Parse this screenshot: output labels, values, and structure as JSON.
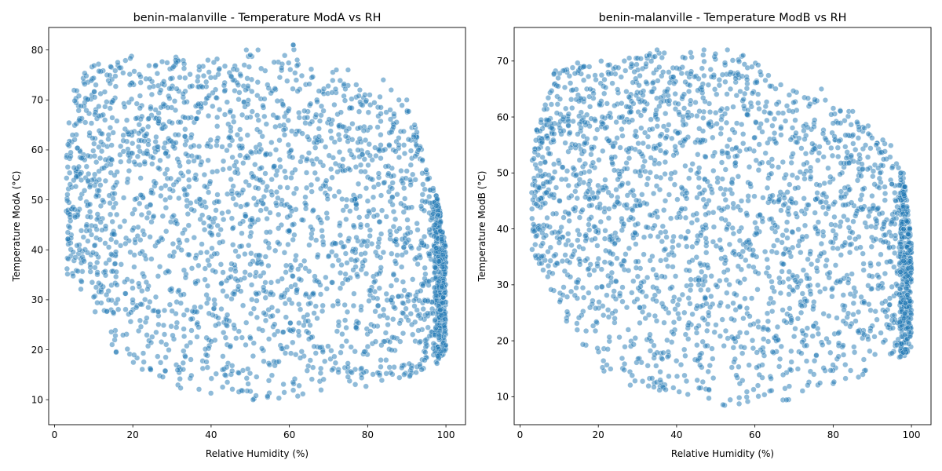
{
  "colors": {
    "point": "#1f77b4",
    "background": "#ffffff",
    "axis": "#000000"
  },
  "chart_data": [
    {
      "type": "scatter",
      "title": "benin-malanville - Temperature ModA vs RH",
      "xlabel": "Relative Humidity (%)",
      "ylabel": "Temperature ModA (°C)",
      "xlim": [
        -1.5,
        105
      ],
      "ylim": [
        5,
        84.5
      ],
      "xticks": [
        0,
        20,
        40,
        60,
        80,
        100
      ],
      "yticks": [
        10,
        20,
        30,
        40,
        50,
        60,
        70,
        80
      ],
      "grid": false,
      "legend": "none",
      "point_alpha": 0.5,
      "envelope": {
        "x": [
          3,
          5,
          8,
          12,
          16,
          20,
          25,
          30,
          35,
          40,
          45,
          50,
          55,
          60,
          65,
          70,
          75,
          80,
          85,
          90,
          95,
          98,
          100
        ],
        "y_min": [
          35,
          34,
          30,
          24,
          19,
          16,
          14,
          12.5,
          11,
          10.5,
          10,
          9.5,
          9.5,
          10,
          10.5,
          11,
          11.5,
          12,
          13,
          14,
          16,
          17,
          18
        ],
        "y_max": [
          62,
          72,
          76,
          78,
          78,
          79,
          78,
          79,
          78,
          78,
          79,
          79,
          78,
          81,
          77,
          76,
          74,
          72,
          70,
          70,
          58,
          50,
          40
        ]
      },
      "outliers": {
        "x": [
          49,
          50,
          52,
          61,
          61,
          62,
          72,
          75,
          78,
          84,
          86,
          88,
          90,
          92,
          93,
          94,
          95,
          98
        ],
        "y": [
          80,
          79,
          80,
          81,
          81,
          78,
          76,
          76,
          72,
          74,
          72,
          70,
          70,
          65,
          60,
          58,
          56,
          47
        ]
      }
    },
    {
      "type": "scatter",
      "title": "benin-malanville - Temperature ModB vs RH",
      "xlabel": "Relative Humidity (%)",
      "ylabel": "Temperature ModB (°C)",
      "xlim": [
        -1.5,
        105
      ],
      "ylim": [
        5,
        76
      ],
      "xticks": [
        0,
        20,
        40,
        60,
        80,
        100
      ],
      "yticks": [
        10,
        20,
        30,
        40,
        50,
        60,
        70
      ],
      "grid": false,
      "legend": "none",
      "point_alpha": 0.5,
      "envelope": {
        "x": [
          3,
          5,
          8,
          12,
          16,
          20,
          25,
          30,
          35,
          40,
          45,
          50,
          55,
          60,
          65,
          70,
          75,
          80,
          85,
          90,
          95,
          98,
          100
        ],
        "y_min": [
          35,
          33,
          29,
          23,
          18,
          15,
          13,
          11.5,
          10.5,
          9.5,
          9,
          8.5,
          8,
          8.5,
          9,
          9.5,
          10.5,
          12,
          13,
          14,
          16.5,
          17,
          19
        ],
        "y_max": [
          54,
          60,
          68,
          69,
          70,
          70,
          70,
          71,
          72,
          71,
          72,
          72,
          72,
          70,
          67,
          65,
          64,
          62,
          60,
          58,
          55,
          50,
          38
        ]
      },
      "outliers": {
        "x": [
          33,
          35,
          47,
          53,
          57,
          77,
          78,
          84,
          85,
          88,
          89,
          91,
          92,
          95,
          96,
          98
        ],
        "y": [
          71,
          72,
          72,
          72,
          71,
          65,
          63,
          61,
          61,
          58,
          57,
          55,
          50,
          48,
          45,
          40
        ]
      }
    }
  ]
}
